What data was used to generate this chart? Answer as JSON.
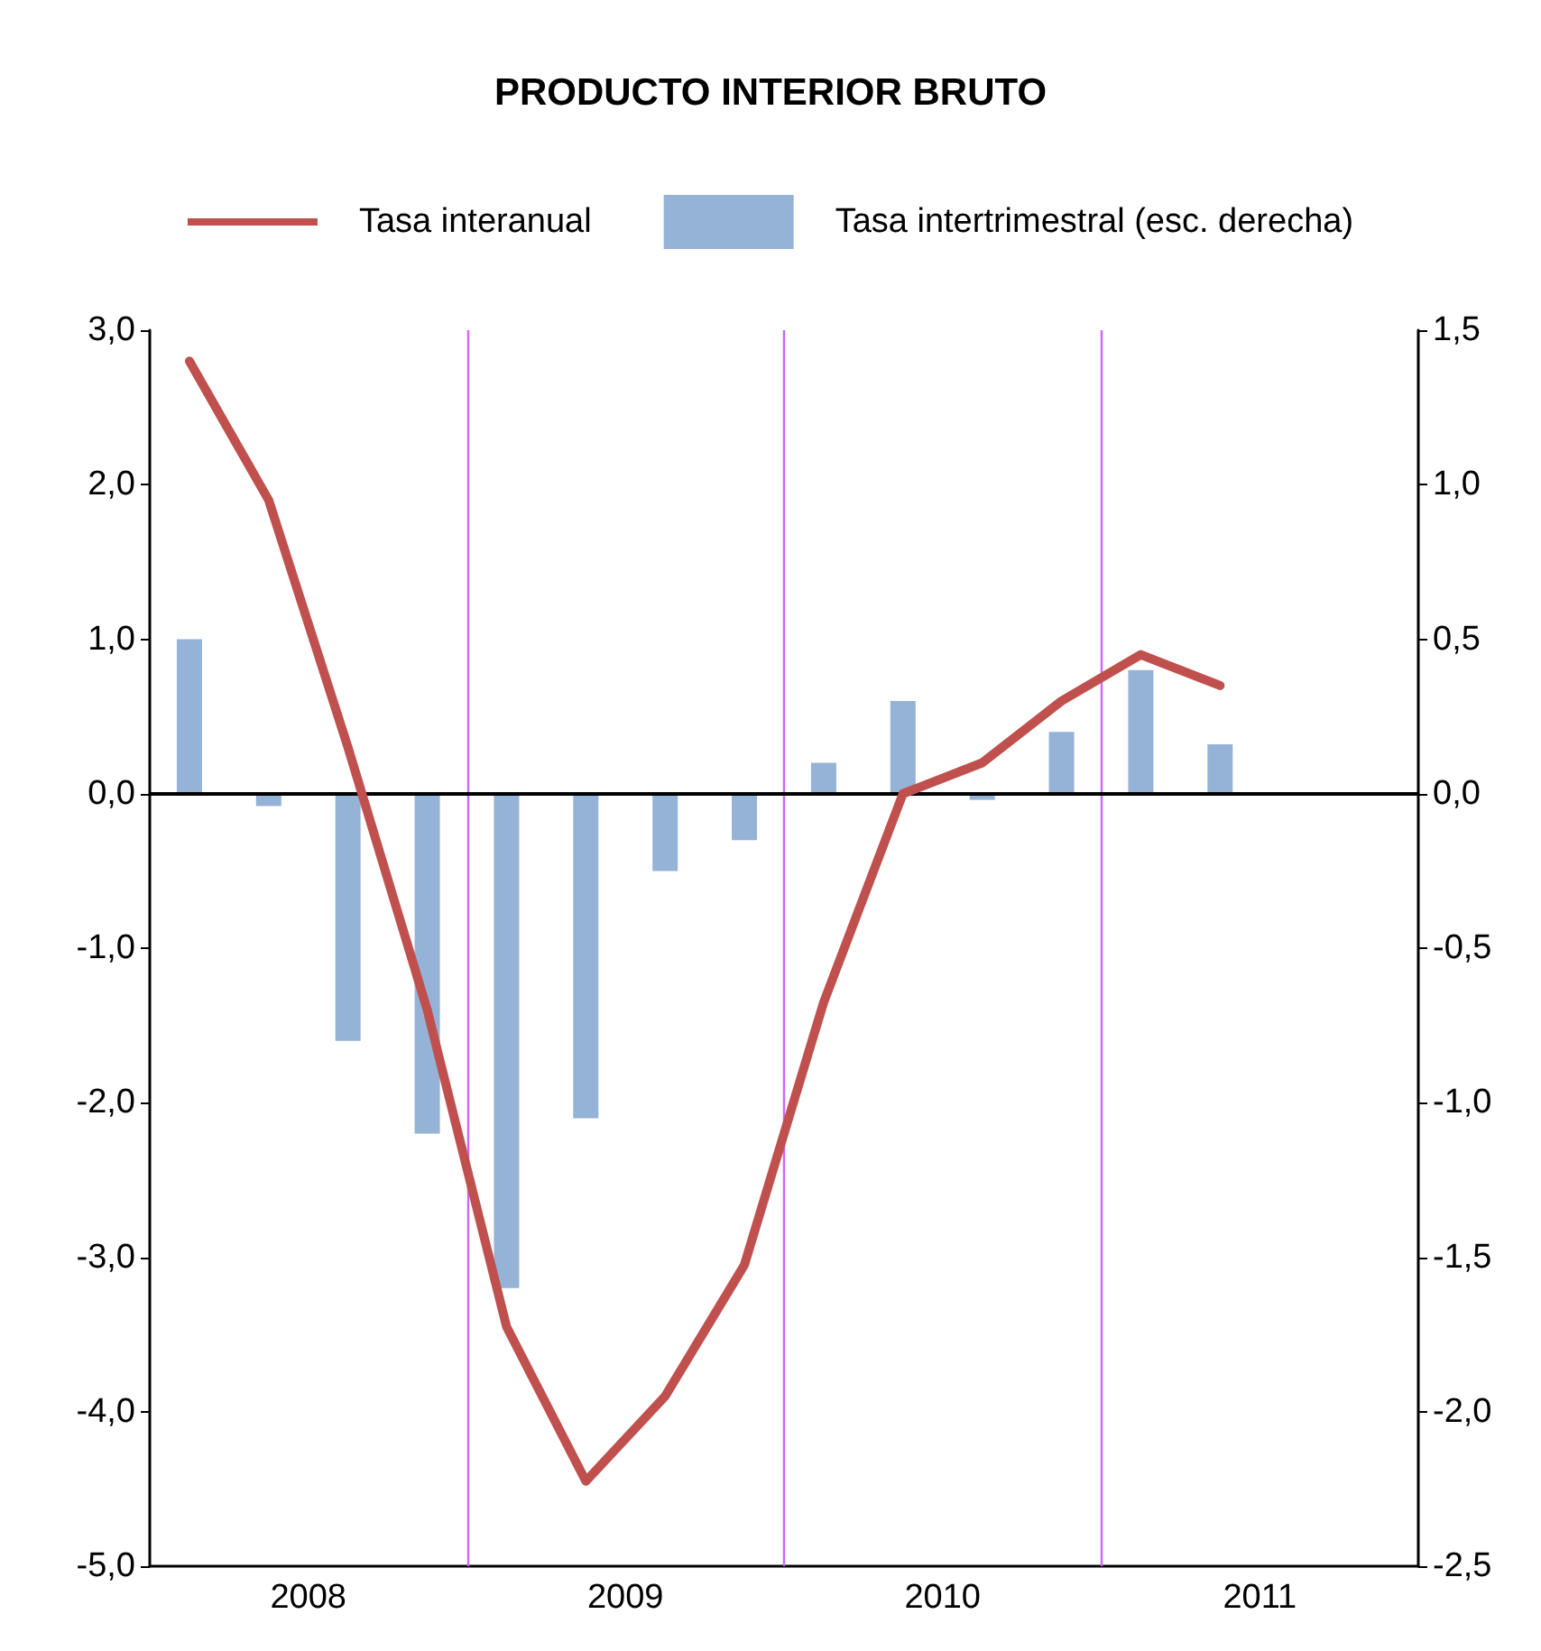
{
  "chart_data": {
    "type": "line",
    "title": "PRODUCTO INTERIOR BRUTO",
    "x": [
      2008.125,
      2008.375,
      2008.625,
      2008.875,
      2009.125,
      2009.375,
      2009.625,
      2009.875,
      2010.125,
      2010.375,
      2010.625,
      2010.875,
      2011.125,
      2011.375
    ],
    "series": [
      {
        "name": "Tasa interanual",
        "color": "#c0504d",
        "values": [
          2.8,
          1.9,
          0.3,
          -1.4,
          -3.45,
          -4.45,
          -3.9,
          -3.05,
          -1.35,
          0.0,
          0.2,
          0.6,
          0.9,
          0.7
        ]
      },
      {
        "name": "Tasa intertrimestral (esc. derecha)",
        "type": "bar",
        "axis": "y2",
        "color": "#95b3d7",
        "values": [
          0.5,
          -0.04,
          -0.8,
          -1.1,
          -1.6,
          -1.05,
          -0.25,
          -0.15,
          0.1,
          0.3,
          -0.02,
          0.2,
          0.4,
          0.16
        ]
      }
    ],
    "xlim": [
      2008,
      2012
    ],
    "xticks": [
      {
        "value": 2008.5,
        "label": "2008"
      },
      {
        "value": 2009.5,
        "label": "2009"
      },
      {
        "value": 2010.5,
        "label": "2010"
      },
      {
        "value": 2011.5,
        "label": "2011"
      }
    ],
    "ylim": [
      -5,
      3
    ],
    "yticks": [
      {
        "value": -5,
        "label": "-5,0"
      },
      {
        "value": -4,
        "label": "-4,0"
      },
      {
        "value": -3,
        "label": "-3,0"
      },
      {
        "value": -2,
        "label": "-2,0"
      },
      {
        "value": -1,
        "label": "-1,0"
      },
      {
        "value": 0,
        "label": "0,0"
      },
      {
        "value": 1,
        "label": "1,0"
      },
      {
        "value": 2,
        "label": "2,0"
      },
      {
        "value": 3,
        "label": "3,0"
      }
    ],
    "y2lim": [
      -2.5,
      1.5
    ],
    "y2ticks": [
      {
        "value": -2.5,
        "label": "-2,5"
      },
      {
        "value": -2,
        "label": "-2,0"
      },
      {
        "value": -1.5,
        "label": "-1,5"
      },
      {
        "value": -1,
        "label": "-1,0"
      },
      {
        "value": -0.5,
        "label": "-0,5"
      },
      {
        "value": 0,
        "label": "0,0"
      },
      {
        "value": 0.5,
        "label": "0,5"
      },
      {
        "value": 1,
        "label": "1,0"
      },
      {
        "value": 1.5,
        "label": "1,5"
      }
    ],
    "ref_lines": [
      {
        "axis": "y",
        "value": 0,
        "color": "#000000"
      },
      {
        "axis": "x",
        "value": 2009,
        "color": "#cc66ff"
      },
      {
        "axis": "x",
        "value": 2010,
        "color": "#cc66ff"
      },
      {
        "axis": "x",
        "value": 2011,
        "color": "#cc66ff"
      }
    ],
    "grid": false,
    "legend": "top",
    "marker": "none",
    "line_style": "solid"
  }
}
